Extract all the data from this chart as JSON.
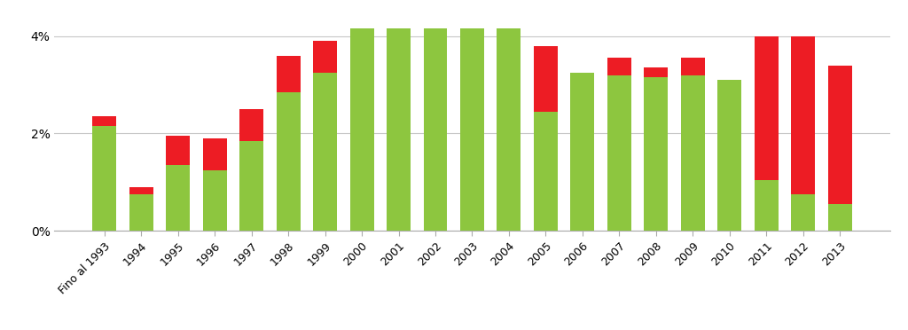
{
  "categories": [
    "Fino al 1993",
    "1994",
    "1995",
    "1996",
    "1997",
    "1998",
    "1999",
    "2000",
    "2001",
    "2002",
    "2003",
    "2004",
    "2005",
    "2006",
    "2007",
    "2008",
    "2009",
    "2010",
    "2011",
    "2012",
    "2013"
  ],
  "green_values": [
    2.15,
    0.75,
    1.35,
    1.25,
    1.85,
    2.85,
    3.25,
    4.15,
    4.15,
    4.15,
    4.15,
    4.15,
    2.45,
    3.25,
    3.2,
    3.15,
    3.2,
    3.1,
    1.05,
    0.75,
    0.55
  ],
  "red_values": [
    0.2,
    0.15,
    0.6,
    0.65,
    0.65,
    0.75,
    0.65,
    0.0,
    0.0,
    0.0,
    0.0,
    0.0,
    1.35,
    0.0,
    0.35,
    0.2,
    0.35,
    0.0,
    2.95,
    3.25,
    2.85
  ],
  "green_color": "#8dc63f",
  "red_color": "#ed1c24",
  "ylim_max": 4.4,
  "ytick_vals": [
    0.0,
    2.0,
    4.0
  ],
  "yticklabels": [
    "0%",
    "2%",
    "4%"
  ],
  "background_color": "#ffffff",
  "grid_color": "#c8c8c8"
}
